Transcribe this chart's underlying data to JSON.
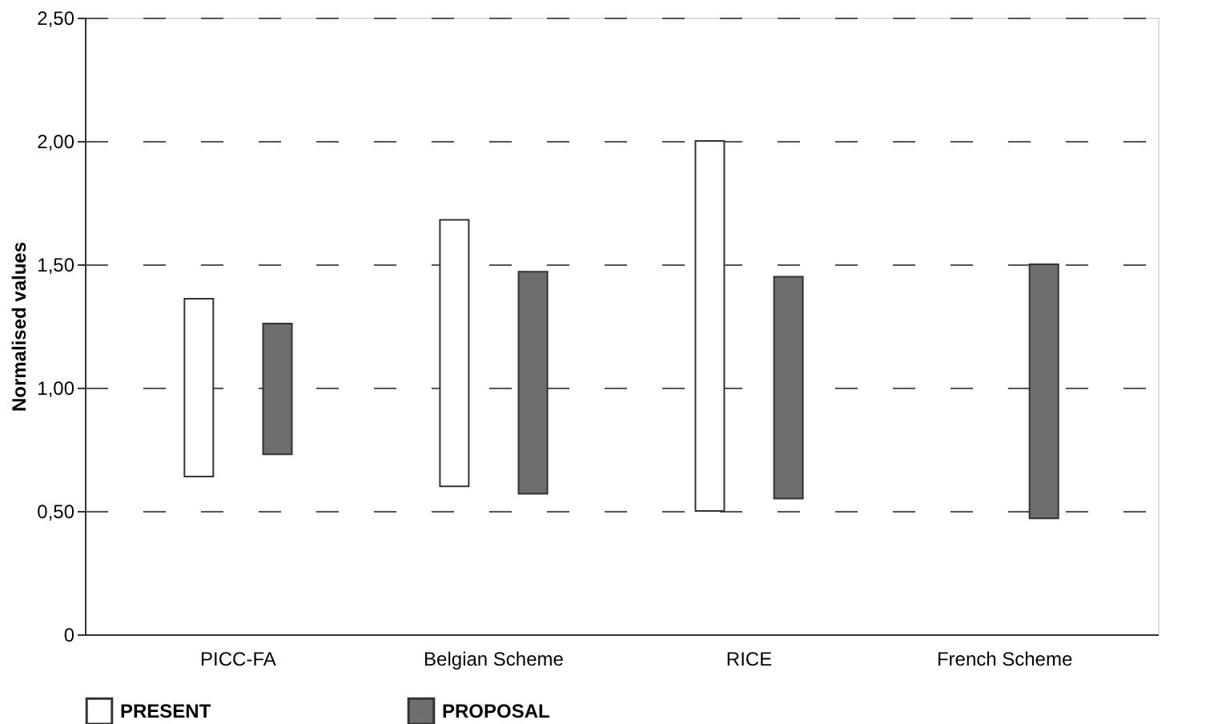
{
  "chart_data": {
    "type": "bar",
    "ylabel": "Normalised values",
    "categories": [
      "PICC-FA",
      "Belgian Scheme",
      "RICE",
      "French Scheme"
    ],
    "series": [
      {
        "name": "PRESENT",
        "color": "#ffffff",
        "base": [
          0.64,
          0.6,
          0.5,
          null
        ],
        "values": [
          0.72,
          1.08,
          1.5,
          null
        ]
      },
      {
        "name": "PROPOSAL",
        "color": "#6e6e6e",
        "base": [
          0.73,
          0.57,
          0.55,
          0.47
        ],
        "values": [
          0.53,
          0.9,
          0.9,
          1.03
        ]
      }
    ],
    "ylim": [
      0,
      2.5
    ],
    "yticks": [
      0,
      {
        "value": 0.5,
        "label": "0,50"
      },
      {
        "value": 1,
        "label": "1,00"
      },
      {
        "value": 1.5,
        "label": "1,50"
      },
      {
        "value": 2,
        "label": "2,00"
      },
      {
        "value": 2.5,
        "label": "2,50"
      }
    ],
    "grid": "y",
    "legend": "bottom"
  }
}
